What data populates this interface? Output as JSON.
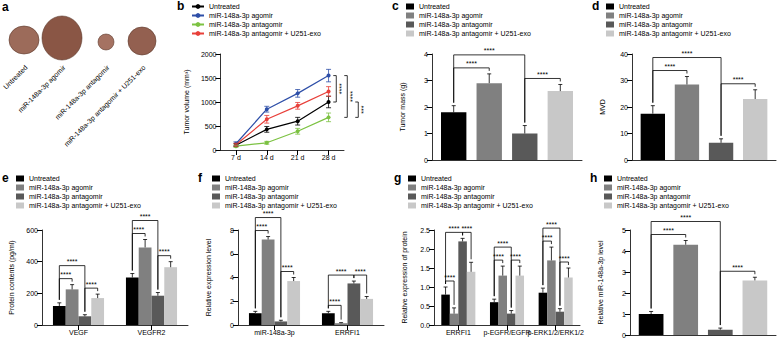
{
  "photo": {
    "title": "a",
    "labels": [
      "Untreated",
      "miR-148a-3p agomir",
      "miR-148a-3p antagomir",
      "miR-148a-3p antagomir + U251-exo"
    ]
  },
  "chart_data": [
    {
      "title": "b",
      "type": "line",
      "categories": [
        "7 d",
        "14 d",
        "21 d",
        "28 d"
      ],
      "ylabel": "Tumor volume (mm³)",
      "ylim": [
        0,
        2000
      ],
      "yticks": [
        0,
        500,
        1000,
        1500,
        2000
      ],
      "grid": false,
      "legend": "upper left",
      "marker": "circle",
      "series": [
        {
          "name": "Untreated",
          "color": "#000000",
          "values": [
            100,
            430,
            600,
            1000
          ],
          "errors": [
            30,
            60,
            80,
            120
          ]
        },
        {
          "name": "miR-148a-3p agomir",
          "color": "#2e4fa8",
          "values": [
            130,
            850,
            1180,
            1550
          ],
          "errors": [
            40,
            60,
            80,
            130
          ]
        },
        {
          "name": "miR-148a-3p antagomir",
          "color": "#7cc242",
          "values": [
            80,
            150,
            390,
            680
          ],
          "errors": [
            20,
            30,
            60,
            90
          ]
        },
        {
          "name": "miR-148a-3p antagomir + U251-exo",
          "color": "#e8403a",
          "values": [
            110,
            640,
            920,
            1220
          ],
          "errors": [
            30,
            80,
            70,
            100
          ]
        }
      ],
      "significance": [
        {
          "pair": [
            1,
            0
          ],
          "label": "****"
        },
        {
          "pair": [
            1,
            2
          ],
          "label": "****"
        },
        {
          "pair": [
            0,
            2
          ],
          "label": "***"
        }
      ]
    },
    {
      "title": "c",
      "type": "bar",
      "categories": [
        null
      ],
      "ylabel": "Tumor mass (g)",
      "ylim": [
        0,
        4
      ],
      "yticks": [
        0,
        1,
        2,
        3,
        4
      ],
      "grid": false,
      "legend": "upper left",
      "tick_labels": "y",
      "series": [
        {
          "name": "Untreated",
          "color": "#000000",
          "values": [
            1.8
          ],
          "errors": [
            0.25
          ]
        },
        {
          "name": "miR-148a-3p agomir",
          "color": "#808080",
          "values": [
            2.9
          ],
          "errors": [
            0.35
          ]
        },
        {
          "name": "miR-148a-3p antagomir",
          "color": "#595959",
          "values": [
            1.0
          ],
          "errors": [
            0.3
          ]
        },
        {
          "name": "miR-148a-3p antagomir + U251-exo",
          "color": "#c8c8c8",
          "values": [
            2.6
          ],
          "errors": [
            0.25
          ]
        }
      ],
      "significance": [
        {
          "category": 0,
          "pair": [
            0,
            1
          ],
          "label": "****"
        },
        {
          "category": 0,
          "pair": [
            0,
            2
          ],
          "label": "****"
        },
        {
          "category": 0,
          "pair": [
            2,
            3
          ],
          "label": "****"
        }
      ]
    },
    {
      "title": "d",
      "type": "bar",
      "categories": [
        null
      ],
      "ylabel": "MVD",
      "ylim": [
        0,
        40
      ],
      "yticks": [
        0,
        10,
        20,
        30,
        40
      ],
      "grid": false,
      "legend": "upper left",
      "tick_labels": "y",
      "series": [
        {
          "name": "Untreated",
          "color": "#000000",
          "values": [
            17.5
          ],
          "errors": [
            3
          ]
        },
        {
          "name": "miR-148a-3p agomir",
          "color": "#808080",
          "values": [
            28.5
          ],
          "errors": [
            3
          ]
        },
        {
          "name": "miR-148a-3p antagomir",
          "color": "#595959",
          "values": [
            6.5
          ],
          "errors": [
            1.5
          ]
        },
        {
          "name": "miR-148a-3p antagomir + U251-exo",
          "color": "#c8c8c8",
          "values": [
            23
          ],
          "errors": [
            3.5
          ]
        }
      ],
      "significance": [
        {
          "category": 0,
          "pair": [
            0,
            1
          ],
          "label": "****"
        },
        {
          "category": 0,
          "pair": [
            0,
            2
          ],
          "label": "****"
        },
        {
          "category": 0,
          "pair": [
            2,
            3
          ],
          "label": "****"
        }
      ]
    },
    {
      "title": "e",
      "type": "bar",
      "categories": [
        "VEGF",
        "VEGFR2"
      ],
      "ylabel": "Protein contents (pg/ml)",
      "ylim": [
        0,
        600
      ],
      "yticks": [
        0,
        200,
        400,
        600
      ],
      "grid": false,
      "legend": "upper left",
      "series": [
        {
          "name": "Untreated",
          "color": "#000000",
          "values": [
            120,
            300
          ],
          "errors": [
            20,
            25
          ]
        },
        {
          "name": "miR-148a-3p agomir",
          "color": "#808080",
          "values": [
            225,
            490
          ],
          "errors": [
            30,
            50
          ]
        },
        {
          "name": "miR-148a-3p antagomir",
          "color": "#595959",
          "values": [
            55,
            185
          ],
          "errors": [
            10,
            20
          ]
        },
        {
          "name": "miR-148a-3p antagomir + U251-exo",
          "color": "#c8c8c8",
          "values": [
            170,
            365
          ],
          "errors": [
            25,
            35
          ]
        }
      ],
      "significance": [
        {
          "category": 0,
          "pair": [
            0,
            1
          ],
          "label": "****"
        },
        {
          "category": 0,
          "pair": [
            0,
            2
          ],
          "label": "****"
        },
        {
          "category": 0,
          "pair": [
            2,
            3
          ],
          "label": "****"
        },
        {
          "category": 1,
          "pair": [
            0,
            1
          ],
          "label": "****"
        },
        {
          "category": 1,
          "pair": [
            0,
            2
          ],
          "label": "****"
        },
        {
          "category": 1,
          "pair": [
            2,
            3
          ],
          "label": "****"
        }
      ]
    },
    {
      "title": "f",
      "type": "bar",
      "categories": [
        "miR-148a-3p",
        "ERRFI1"
      ],
      "ylabel": "Relative expression level",
      "ylim": [
        0,
        8
      ],
      "yticks": [
        0,
        2,
        4,
        6,
        8
      ],
      "grid": false,
      "legend": "upper left",
      "series": [
        {
          "name": "Untreated",
          "color": "#000000",
          "values": [
            1.0,
            1.0
          ],
          "errors": [
            0.15,
            0.15
          ]
        },
        {
          "name": "miR-148a-3p agomir",
          "color": "#808080",
          "values": [
            7.2,
            0.15
          ],
          "errors": [
            0.25,
            0.05
          ]
        },
        {
          "name": "miR-148a-3p antagomir",
          "color": "#595959",
          "values": [
            0.3,
            3.5
          ],
          "errors": [
            0.1,
            0.2
          ]
        },
        {
          "name": "miR-148a-3p antagomir + U251-exo",
          "color": "#c8c8c8",
          "values": [
            3.7,
            2.2
          ],
          "errors": [
            0.3,
            0.2
          ]
        }
      ],
      "significance": [
        {
          "category": 0,
          "pair": [
            0,
            1
          ],
          "label": "****"
        },
        {
          "category": 0,
          "pair": [
            0,
            2
          ],
          "label": "****"
        },
        {
          "category": 0,
          "pair": [
            2,
            3
          ],
          "label": "****"
        },
        {
          "category": 1,
          "pair": [
            0,
            1
          ],
          "label": "****"
        },
        {
          "category": 1,
          "pair": [
            0,
            2
          ],
          "label": "****"
        },
        {
          "category": 1,
          "pair": [
            2,
            3
          ],
          "label": "****"
        }
      ]
    },
    {
      "title": "g",
      "type": "bar",
      "categories": [
        "ERRFI1",
        "p-EGFR/EGFR",
        "p-ERK1/2/ERK1/2"
      ],
      "ylabel": "Relative expression of protein",
      "ylim": [
        0,
        2.5
      ],
      "yticks": [
        {
          "value": 0,
          "label": "0.0"
        },
        0.5,
        {
          "value": 1,
          "label": "1.0"
        },
        1.5,
        {
          "value": 2,
          "label": "2.0"
        },
        2.5
      ],
      "grid": false,
      "legend": "upper left",
      "series": [
        {
          "name": "Untreated",
          "color": "#000000",
          "values": [
            0.8,
            0.6,
            0.85
          ],
          "errors": [
            0.2,
            0.08,
            0.12
          ]
        },
        {
          "name": "miR-148a-3p agomir",
          "color": "#808080",
          "values": [
            0.3,
            1.3,
            1.7
          ],
          "errors": [
            0.15,
            0.25,
            0.35
          ]
        },
        {
          "name": "miR-148a-3p antagomir",
          "color": "#595959",
          "values": [
            2.2,
            0.3,
            0.35
          ],
          "errors": [
            0.08,
            0.08,
            0.08
          ]
        },
        {
          "name": "miR-148a-3p antagomir + U251-exo",
          "color": "#c8c8c8",
          "values": [
            1.4,
            1.3,
            1.25
          ],
          "errors": [
            0.25,
            0.25,
            0.25
          ]
        }
      ],
      "significance": [
        {
          "category": 0,
          "pair": [
            0,
            1
          ],
          "label": "****"
        },
        {
          "category": 0,
          "pair": [
            0,
            2
          ],
          "label": "****"
        },
        {
          "category": 0,
          "pair": [
            2,
            3
          ],
          "label": "****"
        },
        {
          "category": 1,
          "pair": [
            0,
            1
          ],
          "label": "****"
        },
        {
          "category": 1,
          "pair": [
            0,
            2
          ],
          "label": "****"
        },
        {
          "category": 1,
          "pair": [
            2,
            3
          ],
          "label": "****"
        },
        {
          "category": 2,
          "pair": [
            0,
            1
          ],
          "label": "****"
        },
        {
          "category": 2,
          "pair": [
            0,
            2
          ],
          "label": "****"
        },
        {
          "category": 2,
          "pair": [
            2,
            3
          ],
          "label": "****"
        }
      ]
    },
    {
      "title": "h",
      "type": "bar",
      "categories": [
        null
      ],
      "ylabel": "Relative miR-148a-3p level",
      "ylim": [
        0,
        5
      ],
      "yticks": [
        0,
        1,
        2,
        3,
        4,
        5
      ],
      "grid": false,
      "legend": "upper left",
      "tick_labels": "y",
      "series": [
        {
          "name": "Untreated",
          "color": "#000000",
          "values": [
            1.0
          ],
          "errors": [
            0.12
          ]
        },
        {
          "name": "miR-148a-3p agomir",
          "color": "#808080",
          "values": [
            4.3
          ],
          "errors": [
            0.2
          ]
        },
        {
          "name": "miR-148a-3p antagomir",
          "color": "#595959",
          "values": [
            0.25
          ],
          "errors": [
            0.08
          ]
        },
        {
          "name": "miR-148a-3p antagomir + U251-exo",
          "color": "#c8c8c8",
          "values": [
            2.6
          ],
          "errors": [
            0.15
          ]
        }
      ],
      "significance": [
        {
          "category": 0,
          "pair": [
            0,
            1
          ],
          "label": "****"
        },
        {
          "category": 0,
          "pair": [
            0,
            2
          ],
          "label": "****"
        },
        {
          "category": 0,
          "pair": [
            2,
            3
          ],
          "label": "****"
        }
      ]
    }
  ]
}
